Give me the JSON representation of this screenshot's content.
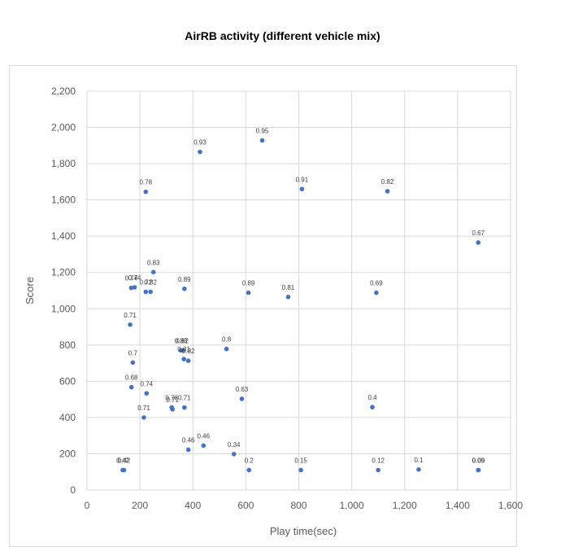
{
  "chart_data": {
    "type": "scatter",
    "title": "AirRB activity (different vehicle mix)",
    "xlabel": "Play time(sec)",
    "ylabel": "Score",
    "xlim": [
      0,
      1600
    ],
    "ylim": [
      0,
      2200
    ],
    "x_ticks": [
      0,
      200,
      400,
      600,
      800,
      1000,
      1200,
      1400,
      1600
    ],
    "x_tick_labels": [
      "0",
      "200",
      "400",
      "600",
      "800",
      "1,000",
      "1,200",
      "1,400",
      "1,600"
    ],
    "y_ticks": [
      0,
      200,
      400,
      600,
      800,
      1000,
      1200,
      1400,
      1600,
      1800,
      2000,
      2200
    ],
    "y_tick_labels": [
      "0",
      "200",
      "400",
      "600",
      "800",
      "1,000",
      "1,200",
      "1,400",
      "1,600",
      "1,800",
      "2,000",
      "2,200"
    ],
    "grid": true,
    "marker_color": "#4472c4",
    "points": [
      {
        "x": 135,
        "y": 110,
        "label": "0.42"
      },
      {
        "x": 140,
        "y": 110,
        "label": "0.42"
      },
      {
        "x": 163,
        "y": 912,
        "label": "0.71"
      },
      {
        "x": 167,
        "y": 1115,
        "label": "0.74"
      },
      {
        "x": 180,
        "y": 1118,
        "label": "0.74"
      },
      {
        "x": 168,
        "y": 567,
        "label": "0.68"
      },
      {
        "x": 173,
        "y": 703,
        "label": "0.7"
      },
      {
        "x": 215,
        "y": 400,
        "label": "0.71"
      },
      {
        "x": 222,
        "y": 1645,
        "label": "0.78"
      },
      {
        "x": 222,
        "y": 1093,
        "label": "0.72"
      },
      {
        "x": 225,
        "y": 533,
        "label": "0.74"
      },
      {
        "x": 240,
        "y": 1093,
        "label": "0.82"
      },
      {
        "x": 251,
        "y": 1202,
        "label": "0.83"
      },
      {
        "x": 320,
        "y": 455,
        "label": "0.78"
      },
      {
        "x": 323,
        "y": 445,
        "label": "0.71"
      },
      {
        "x": 355,
        "y": 770,
        "label": "0.83"
      },
      {
        "x": 360,
        "y": 770,
        "label": "0.82"
      },
      {
        "x": 366,
        "y": 722,
        "label": "0.81"
      },
      {
        "x": 368,
        "y": 455,
        "label": "0.71"
      },
      {
        "x": 368,
        "y": 1110,
        "label": "0.89"
      },
      {
        "x": 383,
        "y": 713,
        "label": "0.82"
      },
      {
        "x": 383,
        "y": 222,
        "label": "0.46"
      },
      {
        "x": 427,
        "y": 1865,
        "label": "0.93"
      },
      {
        "x": 440,
        "y": 245,
        "label": "0.46"
      },
      {
        "x": 527,
        "y": 778,
        "label": "0.8"
      },
      {
        "x": 555,
        "y": 198,
        "label": "0.34"
      },
      {
        "x": 585,
        "y": 503,
        "label": "0.63"
      },
      {
        "x": 610,
        "y": 1088,
        "label": "0.89"
      },
      {
        "x": 612,
        "y": 110,
        "label": "0.2"
      },
      {
        "x": 662,
        "y": 1928,
        "label": "0.95"
      },
      {
        "x": 760,
        "y": 1065,
        "label": "0.81"
      },
      {
        "x": 808,
        "y": 110,
        "label": "0.15"
      },
      {
        "x": 812,
        "y": 1660,
        "label": "0.91"
      },
      {
        "x": 1078,
        "y": 457,
        "label": "0.4"
      },
      {
        "x": 1093,
        "y": 1088,
        "label": "0.69"
      },
      {
        "x": 1100,
        "y": 110,
        "label": "0.12"
      },
      {
        "x": 1135,
        "y": 1648,
        "label": "0.82"
      },
      {
        "x": 1253,
        "y": 113,
        "label": "0.1"
      },
      {
        "x": 1478,
        "y": 1365,
        "label": "0.67"
      },
      {
        "x": 1478,
        "y": 110,
        "label": "0.09"
      },
      {
        "x": 1479,
        "y": 110,
        "label": "0.09"
      }
    ]
  }
}
